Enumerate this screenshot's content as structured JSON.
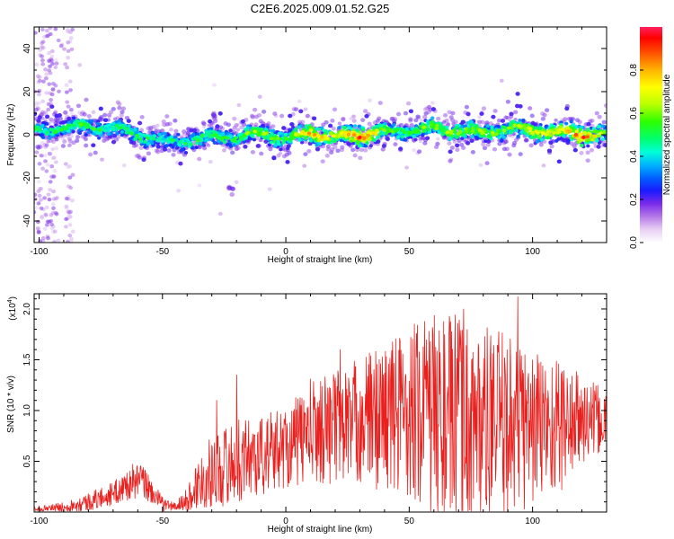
{
  "figure_title": "C2E6.2025.009.01.52.G25",
  "chart_data": [
    {
      "type": "heatmap",
      "title": "C2E6.2025.009.01.52.G25",
      "xlabel": "Height of straight line (km)",
      "ylabel": "Frequency (Hz)",
      "xlim": [
        -102,
        130
      ],
      "ylim": [
        -50,
        50
      ],
      "x_ticks": [
        -100,
        -50,
        0,
        50,
        100
      ],
      "y_ticks": [
        -40,
        -20,
        0,
        20,
        40
      ],
      "colorbar": {
        "label": "Normalized spectral amplitude",
        "range": [
          0,
          1
        ],
        "ticks": [
          0.0,
          0.2,
          0.4,
          0.6,
          0.8
        ],
        "tick_labels": [
          "0.0",
          "0.2",
          "0.4",
          "0.6",
          "0.8"
        ]
      },
      "ridge": {
        "description_points_x": [
          -100,
          -90,
          -80,
          -70,
          -60,
          -50,
          -40,
          -30,
          -20,
          -10,
          0,
          10,
          20,
          30,
          40,
          50,
          60,
          70,
          80,
          90,
          100,
          110,
          120,
          130
        ],
        "center_hz": [
          2,
          3,
          4,
          3,
          0,
          -3,
          -3,
          -1,
          -1,
          1,
          -2,
          1,
          -1,
          0,
          1,
          2,
          3,
          2,
          1,
          3,
          2,
          1,
          0,
          0
        ],
        "peak_amplitude": [
          0.55,
          0.6,
          0.6,
          0.55,
          0.6,
          0.5,
          0.55,
          0.6,
          0.6,
          0.7,
          0.6,
          0.9,
          0.75,
          1.0,
          0.65,
          0.6,
          0.7,
          0.7,
          0.7,
          0.65,
          0.8,
          0.75,
          1.0,
          0.6
        ]
      },
      "features": [
        {
          "x": -22,
          "y": -24,
          "amplitude": 0.15
        },
        {
          "x": -29,
          "y": 9,
          "amplitude": 0.15
        }
      ]
    },
    {
      "type": "line",
      "xlabel": "Height of straight line (km)",
      "ylabel": "SNR (10 * v/v)",
      "y_multiplier_label": "(x10",
      "y_multiplier_exp": "4",
      "xlim": [
        -102,
        130
      ],
      "ylim": [
        0,
        2.15
      ],
      "x_ticks": [
        -100,
        -50,
        0,
        50,
        100
      ],
      "y_ticks": [
        0.5,
        1.0,
        1.5,
        2.0
      ],
      "y_tick_labels": [
        "0.5",
        "1.0",
        "1.5",
        "2.0"
      ],
      "series": [
        {
          "color": "#e8201e",
          "envelope_x": [
            -102,
            -90,
            -80,
            -70,
            -62,
            -58,
            -50,
            -45,
            -40,
            -35,
            -30,
            -25,
            -20,
            -15,
            -10,
            -5,
            0,
            5,
            10,
            20,
            30,
            40,
            50,
            60,
            70,
            80,
            90,
            100,
            110,
            120,
            130
          ],
          "envelope_mean": [
            0.03,
            0.05,
            0.1,
            0.18,
            0.3,
            0.3,
            0.08,
            0.05,
            0.12,
            0.3,
            0.4,
            0.45,
            0.5,
            0.55,
            0.55,
            0.6,
            0.65,
            0.7,
            0.8,
            0.85,
            0.9,
            0.95,
            1.0,
            0.95,
            0.9,
            0.85,
            0.85,
            0.85,
            0.85,
            0.9,
            0.9
          ],
          "envelope_spread": [
            0.02,
            0.04,
            0.08,
            0.1,
            0.15,
            0.15,
            0.06,
            0.04,
            0.1,
            0.25,
            0.3,
            0.35,
            0.35,
            0.35,
            0.35,
            0.35,
            0.35,
            0.4,
            0.45,
            0.5,
            0.55,
            0.65,
            0.75,
            0.9,
            0.9,
            0.85,
            0.8,
            0.7,
            0.6,
            0.4,
            0.25
          ],
          "peaks": [
            {
              "x": -20,
              "y": 1.35
            },
            {
              "x": -28,
              "y": 1.1
            },
            {
              "x": 22,
              "y": 1.6
            },
            {
              "x": 52,
              "y": 1.85
            },
            {
              "x": 72,
              "y": 2.0
            },
            {
              "x": 94,
              "y": 2.12
            }
          ]
        }
      ]
    }
  ]
}
